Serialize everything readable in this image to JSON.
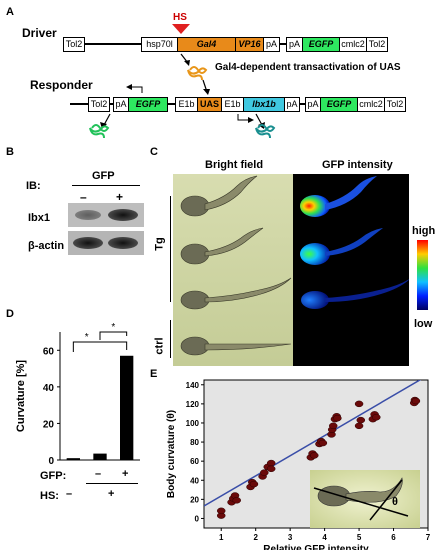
{
  "panelA": {
    "label": "A",
    "driver_title": "Driver",
    "hs_label": "HS",
    "driver_segments": [
      "Tol2",
      "hsp70l",
      "Gal4",
      "VP16",
      "pA",
      "pA",
      "EGFP",
      "cmlc2",
      "Tol2"
    ],
    "transactivation_text": "Gal4-dependent transactivation of UAS",
    "responder_title": "Responder",
    "responder_segments": [
      "Tol2",
      "pA",
      "EGFP",
      "E1b",
      "UAS",
      "E1b",
      "lbx1b",
      "pA",
      "pA",
      "EGFP",
      "cmlc2",
      "Tol2"
    ]
  },
  "panelB": {
    "label": "B",
    "ib_label": "IB:",
    "gfp_label": "GFP",
    "lane_minus": "–",
    "lane_plus": "+",
    "row1_label": "Ibx1",
    "row2_label": "β-actin"
  },
  "panelC": {
    "label": "C",
    "col1_header": "Bright field",
    "col2_header": "GFP intensity",
    "tg_label": "Tg",
    "ctrl_label": "ctrl",
    "scale_high": "high",
    "scale_low": "low"
  },
  "panelD": {
    "label": "D",
    "gfp_row_label": "GFP:",
    "hs_row_label": "HS:",
    "gfp_values": [
      "–",
      "+"
    ],
    "hs_values": [
      "–",
      "+"
    ],
    "sig_marks": [
      "*",
      "*"
    ]
  },
  "panelE": {
    "label": "E",
    "theta": "θ"
  },
  "chart_data": [
    {
      "type": "bar",
      "categories": [
        "HS –",
        "HS +, GFP –",
        "HS +, GFP +"
      ],
      "values": [
        1,
        3.5,
        57
      ],
      "title": "",
      "xlabel": "",
      "ylabel": "Curvature [%]",
      "ylim": [
        0,
        70
      ],
      "yticks": [
        0,
        20,
        40,
        60
      ],
      "grid": false,
      "colors": [
        "#000000"
      ]
    },
    {
      "type": "scatter",
      "title": "",
      "xlabel": "Relative GFP intensity",
      "ylabel": "Body curvature (θ)",
      "xlim": [
        0.5,
        7
      ],
      "ylim": [
        -10,
        145
      ],
      "xticks": [
        1,
        2,
        3,
        4,
        5,
        6,
        7
      ],
      "yticks": [
        0,
        20,
        40,
        60,
        80,
        100,
        120,
        140
      ],
      "grid": false,
      "background": "#e4e4e4",
      "point_color": "#6a0a0a",
      "line_color": "#3a4ea8",
      "points": [
        [
          1.0,
          3
        ],
        [
          1.0,
          8
        ],
        [
          1.3,
          17
        ],
        [
          1.35,
          21
        ],
        [
          1.4,
          24
        ],
        [
          1.45,
          19
        ],
        [
          1.85,
          33
        ],
        [
          1.9,
          38
        ],
        [
          1.95,
          36
        ],
        [
          2.2,
          44
        ],
        [
          2.25,
          48
        ],
        [
          2.35,
          54
        ],
        [
          2.45,
          58
        ],
        [
          2.45,
          52
        ],
        [
          3.6,
          64
        ],
        [
          3.65,
          68
        ],
        [
          3.7,
          66
        ],
        [
          3.85,
          78
        ],
        [
          3.9,
          81
        ],
        [
          3.95,
          79
        ],
        [
          4.2,
          88
        ],
        [
          4.22,
          93
        ],
        [
          4.25,
          97
        ],
        [
          4.3,
          104
        ],
        [
          4.35,
          107
        ],
        [
          4.37,
          105
        ],
        [
          5.0,
          97
        ],
        [
          5.05,
          103
        ],
        [
          5.0,
          120
        ],
        [
          5.4,
          104
        ],
        [
          5.45,
          109
        ],
        [
          5.5,
          106
        ],
        [
          6.6,
          121
        ],
        [
          6.62,
          124
        ],
        [
          6.65,
          123
        ]
      ],
      "fit_line": [
        [
          0.5,
          13
        ],
        [
          7.0,
          150
        ]
      ]
    }
  ]
}
